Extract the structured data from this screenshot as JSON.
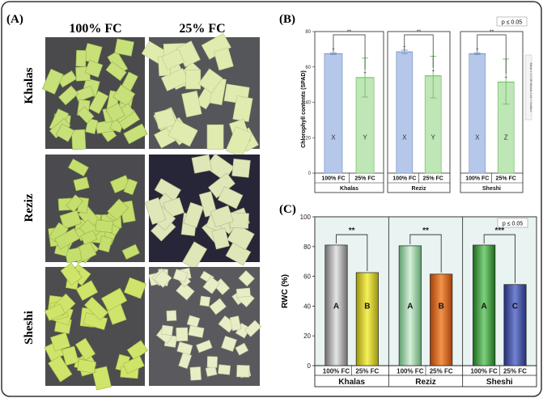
{
  "panel_a": {
    "label": "(A)",
    "columns": [
      "100% FC",
      "25% FC"
    ],
    "rows": [
      "Khalas",
      "Reziz",
      "Sheshi"
    ]
  },
  "panel_b": {
    "label": "(B)",
    "significance_note": "p ≤ 0.05",
    "legend_vertical_text": "Mean ± 1.5 SE   Median Line   ×  Outliers"
  },
  "panel_c": {
    "label": "(C)",
    "significance_note": "p ≤ 0.05"
  },
  "colors": {
    "bar_b_blue": "#b5c8ea",
    "bar_b_green": "#bfe6b6",
    "bar_c_grey": "#a8a8a8",
    "bar_c_yellow": "#ece320",
    "bar_c_lightgreen": "#a8d8b2",
    "bar_c_orange": "#e2681a",
    "bar_c_green": "#3aa23a",
    "bar_c_blue": "#3d4ea8",
    "panel_c_bg": "#e9f3f1"
  },
  "chart_data": [
    {
      "type": "bar",
      "panel": "B",
      "ylabel": "Chlorophyll contents (SPAD)",
      "ylim": [
        0,
        80
      ],
      "yticks": [
        0,
        20,
        40,
        60,
        80
      ],
      "groups": [
        "Khalas",
        "Reziz",
        "Sheshi"
      ],
      "categories": [
        "100% FC",
        "25% FC"
      ],
      "series": [
        {
          "group": "Khalas",
          "values": [
            67.5,
            54
          ],
          "errors": [
            [
              67,
              68
            ],
            [
              43,
              65
            ]
          ],
          "letters": [
            "X",
            "Y"
          ],
          "significance": "**"
        },
        {
          "group": "Reziz",
          "values": [
            68.5,
            55
          ],
          "errors": [
            [
              67.5,
              69.5
            ],
            [
              42.5,
              66
            ]
          ],
          "letters": [
            "X",
            "Y"
          ],
          "significance": "**"
        },
        {
          "group": "Sheshi",
          "values": [
            67.5,
            51.5
          ],
          "errors": [
            [
              67,
              68
            ],
            [
              39,
              64.5
            ]
          ],
          "letters": [
            "X",
            "Z"
          ],
          "significance": "**"
        }
      ],
      "grid": false
    },
    {
      "type": "bar",
      "panel": "C",
      "ylabel": "RWC (%)",
      "ylim": [
        0,
        100
      ],
      "yticks": [
        0,
        20,
        40,
        60,
        80,
        100
      ],
      "groups": [
        "Khalas",
        "Reziz",
        "Sheshi"
      ],
      "categories": [
        "100% FC",
        "25% FC"
      ],
      "series": [
        {
          "group": "Khalas",
          "values": [
            81,
            62.5
          ],
          "letters": [
            "A",
            "B"
          ],
          "significance": "**"
        },
        {
          "group": "Reziz",
          "values": [
            80.5,
            61.5
          ],
          "letters": [
            "A",
            "B"
          ],
          "significance": "**"
        },
        {
          "group": "Sheshi",
          "values": [
            81,
            54.5
          ],
          "letters": [
            "A",
            "C"
          ],
          "significance": "***"
        }
      ],
      "grid": false
    }
  ]
}
